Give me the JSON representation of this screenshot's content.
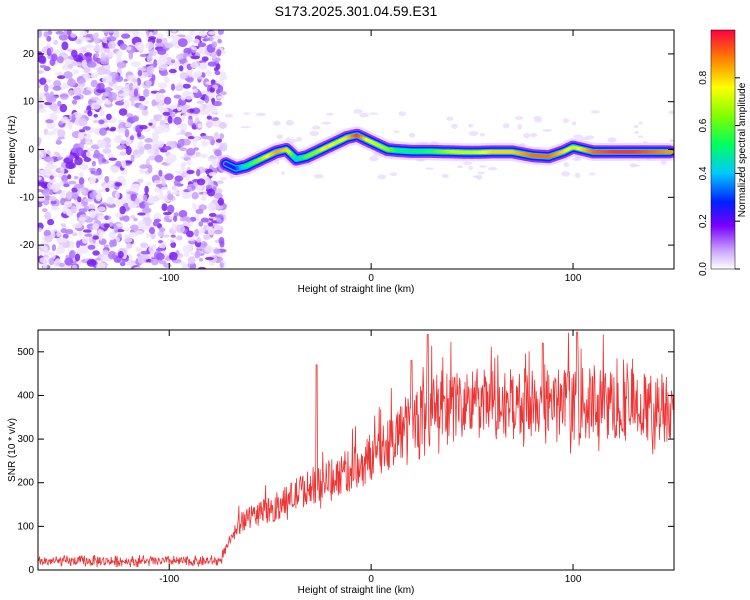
{
  "title": "S173.2025.301.04.59.E31",
  "chart_data": [
    {
      "type": "heatmap",
      "name": "spectrogram",
      "xlabel": "Height of straight line (km)",
      "ylabel": "Frequency (Hz)",
      "xlim": [
        -165,
        150
      ],
      "ylim": [
        -25,
        25
      ],
      "xticks": [
        -100,
        0,
        100
      ],
      "yticks": [
        -20,
        -10,
        0,
        10,
        20
      ],
      "colorbar": {
        "label": "Normalized spectral amplitude",
        "range": [
          0,
          1
        ],
        "ticks": [
          0.0,
          0.2,
          0.4,
          0.6,
          0.8
        ]
      },
      "ridge": {
        "x": [
          -72,
          -67,
          -62,
          -57,
          -52,
          -47,
          -42,
          -37,
          -32,
          -27,
          -22,
          -17,
          -12,
          -7,
          -2,
          3,
          8,
          13,
          20,
          30,
          40,
          50,
          60,
          70,
          80,
          88,
          95,
          100,
          110,
          120,
          130,
          140,
          148
        ],
        "y": [
          -3,
          -4,
          -3.5,
          -2.5,
          -1.5,
          -0.5,
          0,
          -2,
          -1.5,
          -0.5,
          0.5,
          1.5,
          2.5,
          3,
          2,
          1,
          0,
          -0.2,
          -0.4,
          -0.4,
          -0.5,
          -0.6,
          -0.5,
          -0.5,
          -1.3,
          -1.5,
          -0.5,
          0.5,
          -0.5,
          -0.5,
          -0.5,
          -0.5,
          -0.5
        ],
        "amp": [
          0.2,
          0.3,
          0.5,
          0.6,
          0.75,
          0.85,
          0.8,
          0.4,
          0.6,
          0.65,
          0.8,
          0.7,
          0.8,
          0.95,
          0.75,
          0.7,
          0.65,
          0.5,
          0.5,
          0.55,
          0.7,
          0.7,
          0.8,
          0.8,
          0.9,
          0.9,
          0.8,
          0.7,
          0.9,
          0.95,
          0.95,
          0.9,
          0.85
        ]
      },
      "noise_region_x": [
        -165,
        -73
      ]
    },
    {
      "type": "line",
      "name": "snr",
      "xlabel": "Height of straight line (km)",
      "ylabel": "SNR (10 * v/v)",
      "xlim": [
        -165,
        150
      ],
      "ylim": [
        0,
        550
      ],
      "xticks": [
        -100,
        0,
        100
      ],
      "yticks": [
        0,
        100,
        200,
        300,
        400,
        500
      ],
      "color": "#ee3333",
      "baseline": {
        "x": [
          -165,
          -75,
          -66,
          -62,
          -55,
          -45,
          -35,
          -25,
          -15,
          -5,
          5,
          15,
          25,
          35,
          45,
          60,
          80,
          100,
          120,
          140,
          150
        ],
        "y": [
          20,
          20,
          100,
          120,
          130,
          150,
          180,
          200,
          220,
          240,
          280,
          320,
          355,
          375,
          380,
          380,
          380,
          380,
          380,
          370,
          380
        ]
      },
      "spikes": [
        {
          "x": -27,
          "y": 470
        },
        {
          "x": 20,
          "y": 480
        },
        {
          "x": 28,
          "y": 540
        },
        {
          "x": 102,
          "y": 545
        },
        {
          "x": 85,
          "y": 520
        }
      ]
    }
  ]
}
